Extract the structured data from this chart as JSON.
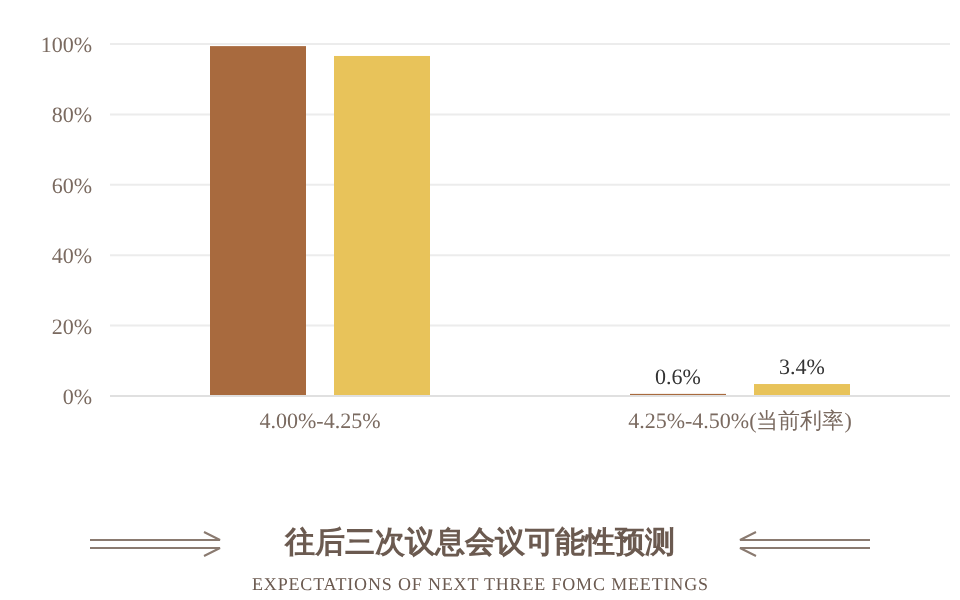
{
  "chart_data": {
    "type": "bar",
    "title": "往后三次议息会议可能性预测",
    "subtitle": "EXPECTATIONS OF NEXT THREE FOMC MEETINGS",
    "categories": [
      "4.00%-4.25%",
      "4.25%-4.50%(当前利率)"
    ],
    "series": [
      {
        "color": "#a86a3e",
        "values": [
          99.4,
          0.6
        ],
        "value_labels": [
          null,
          "0.6%"
        ]
      },
      {
        "color": "#e8c35a",
        "values": [
          96.6,
          3.4
        ],
        "value_labels": [
          null,
          "3.4%"
        ]
      }
    ],
    "ylim": [
      0,
      100
    ],
    "yticks": [
      {
        "value": 0,
        "label": "0%"
      },
      {
        "value": 20,
        "label": "20%"
      },
      {
        "value": 40,
        "label": "40%"
      },
      {
        "value": 60,
        "label": "60%"
      },
      {
        "value": 80,
        "label": "80%"
      },
      {
        "value": 100,
        "label": "100%"
      }
    ],
    "grid": "y"
  }
}
